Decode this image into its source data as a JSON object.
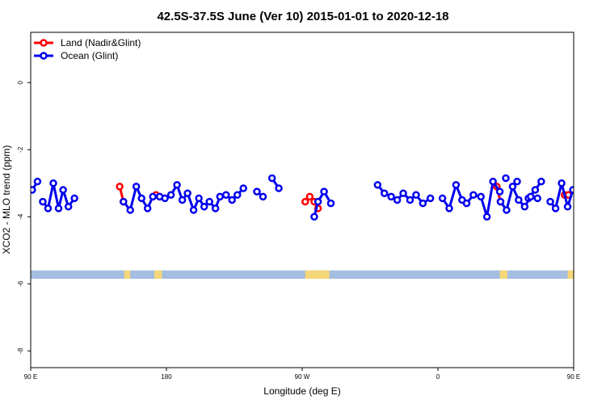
{
  "chart_data": {
    "type": "line",
    "title": "42.5S-37.5S June (Ver 10)   2015-01-01 to 2020-12-18",
    "xlabel": "Longitude (deg E)",
    "ylabel": "XCO2 - MLO trend (ppm)",
    "xlim": [
      90,
      450
    ],
    "ylim": [
      -8.5,
      1.5
    ],
    "xticks": [
      {
        "value": 90,
        "label": "90 E"
      },
      {
        "value": 180,
        "label": "180"
      },
      {
        "value": 270,
        "label": "90 W"
      },
      {
        "value": 360,
        "label": "0"
      },
      {
        "value": 450,
        "label": "90 E"
      },
      {
        "value": 540,
        "label": "180"
      }
    ],
    "yticks": [
      {
        "value": 0,
        "label": "0"
      },
      {
        "value": -2,
        "label": "-2"
      },
      {
        "value": -4,
        "label": "-4"
      },
      {
        "value": -6,
        "label": "-6"
      },
      {
        "value": -8,
        "label": "-8"
      }
    ],
    "legend_position": "top-left",
    "land_band": {
      "y_range": [
        -5.85,
        -5.6
      ],
      "ocean_color": "#a5bde0",
      "land_color": "#f5d77a",
      "land_segments": [
        [
          152,
          156
        ],
        [
          172,
          177
        ],
        [
          272,
          288
        ],
        [
          401,
          406
        ],
        [
          446,
          450
        ]
      ]
    },
    "series": [
      {
        "name": "Land (Nadir&Glint)",
        "color": "#ff0000",
        "segments": [
          [
            [
              149,
              -3.1
            ],
            [
              151.5,
              -3.55
            ]
          ],
          [
            [
              173,
              -3.35
            ],
            [
              175.5,
              -3.4
            ]
          ],
          [
            [
              272,
              -3.55
            ],
            [
              275,
              -3.4
            ],
            [
              278,
              -3.55
            ],
            [
              280.5,
              -3.75
            ]
          ],
          [
            [
              399,
              -3.1
            ],
            [
              401.5,
              -3.55
            ]
          ],
          [
            [
              444,
              -3.35
            ],
            [
              446.5,
              -3.35
            ]
          ]
        ]
      },
      {
        "name": "Ocean (Glint)",
        "color": "#0000ee",
        "segments": [
          [
            [
              91,
              -3.2
            ],
            [
              94.5,
              -2.95
            ]
          ],
          [
            [
              98,
              -3.55
            ],
            [
              101.5,
              -3.75
            ],
            [
              105,
              -3.0
            ],
            [
              108.5,
              -3.75
            ],
            [
              111.5,
              -3.2
            ],
            [
              115,
              -3.7
            ],
            [
              119,
              -3.45
            ]
          ],
          [
            [
              151.5,
              -3.55
            ],
            [
              156,
              -3.8
            ],
            [
              160,
              -3.1
            ],
            [
              163.5,
              -3.45
            ],
            [
              167.5,
              -3.75
            ],
            [
              171,
              -3.4
            ],
            [
              175.5,
              -3.4
            ],
            [
              179,
              -3.45
            ],
            [
              183,
              -3.35
            ],
            [
              187,
              -3.05
            ],
            [
              190.5,
              -3.5
            ],
            [
              194,
              -3.3
            ],
            [
              198,
              -3.8
            ],
            [
              201.5,
              -3.45
            ],
            [
              205,
              -3.7
            ],
            [
              208.5,
              -3.55
            ],
            [
              212.5,
              -3.75
            ],
            [
              215.5,
              -3.4
            ],
            [
              219.5,
              -3.35
            ],
            [
              223.5,
              -3.5
            ],
            [
              227,
              -3.35
            ],
            [
              231,
              -3.15
            ]
          ],
          [
            [
              240,
              -3.25
            ],
            [
              244,
              -3.4
            ]
          ],
          [
            [
              250,
              -2.85
            ],
            [
              254.5,
              -3.15
            ]
          ],
          [
            [
              278,
              -4.0
            ],
            [
              280.5,
              -3.55
            ],
            [
              284.5,
              -3.25
            ],
            [
              289,
              -3.6
            ]
          ],
          [
            [
              320,
              -3.05
            ],
            [
              324.5,
              -3.3
            ],
            [
              329,
              -3.4
            ],
            [
              333,
              -3.5
            ],
            [
              337,
              -3.3
            ],
            [
              341.5,
              -3.5
            ],
            [
              345.5,
              -3.35
            ],
            [
              350,
              -3.6
            ],
            [
              355,
              -3.45
            ]
          ],
          [
            [
              363,
              -3.45
            ],
            [
              367.5,
              -3.75
            ],
            [
              372,
              -3.05
            ],
            [
              376,
              -3.5
            ],
            [
              379,
              -3.6
            ],
            [
              383.5,
              -3.35
            ],
            [
              388.5,
              -3.4
            ],
            [
              392.5,
              -4.0
            ],
            [
              396.5,
              -2.95
            ],
            [
              401,
              -3.25
            ]
          ],
          [
            [
              405,
              -2.85
            ]
          ],
          [
            [
              412.5,
              -2.95
            ]
          ],
          [
            [
              420,
              -3.45
            ],
            [
              424.5,
              -3.2
            ],
            [
              428.5,
              -2.95
            ]
          ],
          [
            [
              434.5,
              -3.55
            ],
            [
              438,
              -3.75
            ],
            [
              442,
              -3.0
            ],
            [
              446,
              -3.7
            ],
            [
              449.5,
              -3.2
            ],
            [
              453.5,
              -3.65
            ],
            [
              457.5,
              -3.45
            ]
          ],
          [
            [
              401.5,
              -3.55
            ],
            [
              405.5,
              -3.8
            ],
            [
              409.5,
              -3.1
            ],
            [
              413.5,
              -3.5
            ],
            [
              417.5,
              -3.7
            ],
            [
              421.5,
              -3.4
            ],
            [
              426,
              -3.45
            ]
          ]
        ]
      }
    ]
  }
}
